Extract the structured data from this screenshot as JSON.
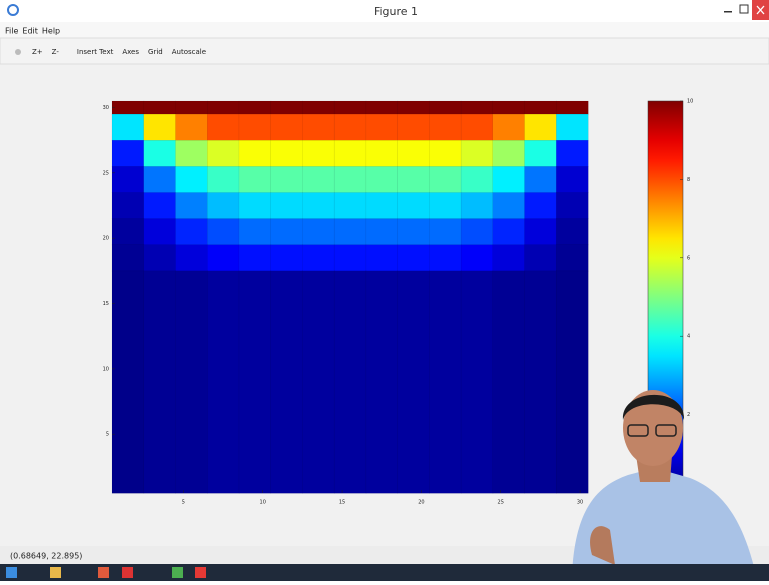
{
  "window": {
    "title": "Figure 1",
    "menu": [
      "File",
      "Edit",
      "Help"
    ],
    "toolbar": [
      "Z+",
      "Z-",
      "Insert Text",
      "Axes",
      "Grid",
      "Autoscale"
    ],
    "status": "(0.68649, 22.895)"
  },
  "chart_data": {
    "type": "heatmap",
    "colormap": "jet",
    "x_edges": [
      0.5,
      2.5,
      4.5,
      6.5,
      8.5,
      10.5,
      12.5,
      14.5,
      16.5,
      18.5,
      20.5,
      22.5,
      24.5,
      26.5,
      28.5,
      30.5
    ],
    "y_edges": [
      30.5,
      29.5,
      27.5,
      25.5,
      23.5,
      21.5,
      19.5,
      17.5,
      0.5
    ],
    "z": [
      [
        10,
        10,
        10,
        10,
        10,
        10,
        10,
        10,
        10,
        10,
        10,
        10,
        10,
        10,
        10
      ],
      [
        3.5,
        6.5,
        7.5,
        8,
        8,
        8,
        8,
        8,
        8,
        8,
        8,
        8,
        7.5,
        6.5,
        3.5
      ],
      [
        1.5,
        4,
        5.3,
        5.9,
        6.2,
        6.2,
        6.2,
        6.2,
        6.2,
        6.2,
        6.2,
        5.9,
        5.3,
        4,
        1.5
      ],
      [
        0.8,
        2.4,
        3.6,
        4.3,
        4.6,
        4.6,
        4.6,
        4.6,
        4.6,
        4.6,
        4.6,
        4.3,
        3.6,
        2.4,
        0.8
      ],
      [
        0.5,
        1.5,
        2.5,
        3.1,
        3.4,
        3.4,
        3.4,
        3.4,
        3.4,
        3.4,
        3.4,
        3.1,
        2.5,
        1.5,
        0.5
      ],
      [
        0.3,
        0.9,
        1.6,
        2,
        2.3,
        2.3,
        2.3,
        2.3,
        2.3,
        2.3,
        2.3,
        2,
        1.6,
        0.9,
        0.3
      ],
      [
        0.2,
        0.5,
        0.9,
        1.2,
        1.4,
        1.4,
        1.4,
        1.4,
        1.4,
        1.4,
        1.4,
        1.2,
        0.9,
        0.5,
        0.2
      ],
      [
        0.1,
        0.2,
        0.2,
        0.3,
        0.3,
        0.3,
        0.3,
        0.3,
        0.3,
        0.3,
        0.3,
        0.3,
        0.2,
        0.2,
        0.1
      ]
    ],
    "xlim": [
      0.5,
      30.5
    ],
    "ylim": [
      0.5,
      30.5
    ],
    "xticks": [
      5,
      10,
      15,
      20,
      25,
      30
    ],
    "yticks": [
      5,
      10,
      15,
      20,
      25,
      30
    ],
    "zlim": [
      0,
      10
    ],
    "colorbar_ticks": [
      2,
      4,
      6,
      8,
      10
    ]
  }
}
